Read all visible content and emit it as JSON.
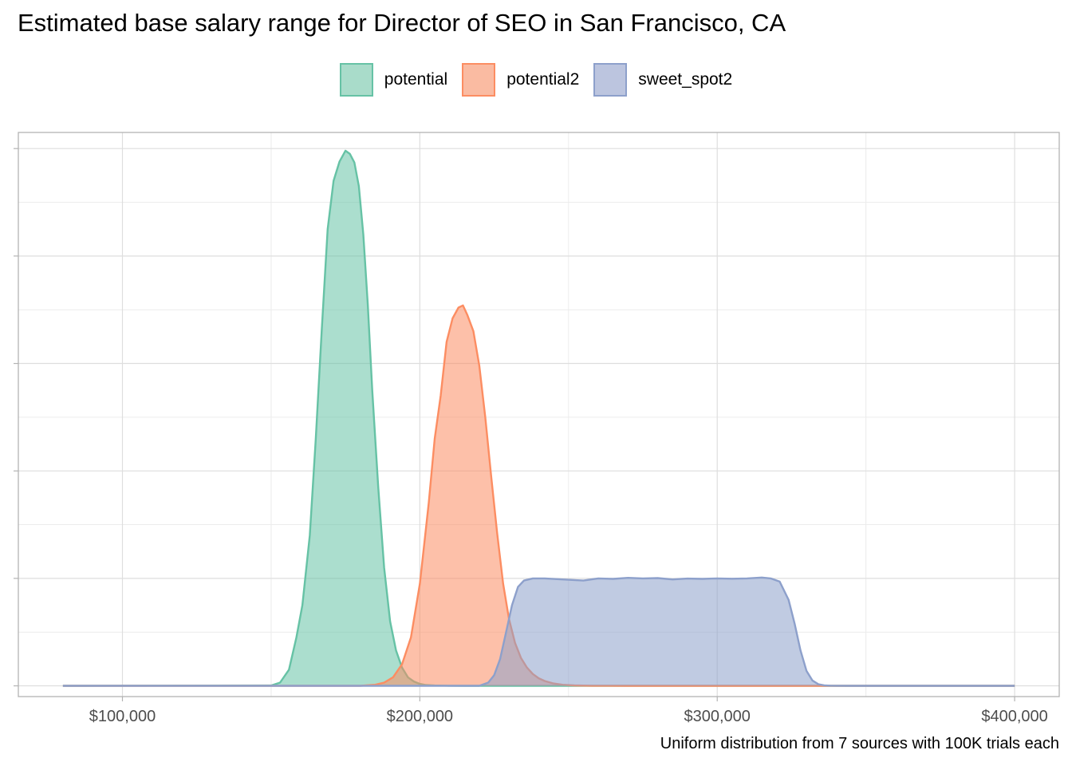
{
  "title": "Estimated base salary range for Director of SEO in San Francisco, CA",
  "caption": "Uniform distribution from 7 sources with 100K trials each",
  "legend": [
    {
      "name": "potential",
      "stroke": "#66c2a5",
      "fill": "#a9dcca"
    },
    {
      "name": "potential2",
      "stroke": "#fc8d62",
      "fill": "#fabba2"
    },
    {
      "name": "sweet_spot2",
      "stroke": "#8da0cb",
      "fill": "#bcc5df"
    }
  ],
  "chart_data": {
    "type": "area",
    "title": "Estimated base salary range for Director of SEO in San Francisco, CA",
    "xlabel": "",
    "ylabel": "",
    "xlim": [
      65000,
      415000
    ],
    "ylim": [
      -0.1,
      5.15
    ],
    "x_ticks": [
      100000,
      200000,
      300000,
      400000
    ],
    "x_tick_labels": [
      "$100,000",
      "$200,000",
      "$300,000",
      "$400,000"
    ],
    "y_ticks": [
      0,
      1,
      2,
      3,
      4,
      5
    ],
    "y_tick_labels": [
      "",
      "",
      "",
      "",
      "",
      ""
    ],
    "grid": true,
    "legend_position": "top",
    "series": [
      {
        "name": "potential",
        "stroke": "#66c2a5",
        "fill": "#66c2a5",
        "x": [
          80000,
          150000,
          153000,
          156000,
          158500,
          160500,
          163000,
          165000,
          167000,
          169000,
          171000,
          173000,
          175000,
          176500,
          178000,
          179500,
          181000,
          182500,
          184000,
          186000,
          188000,
          190000,
          192000,
          194000,
          196000,
          198000,
          200000,
          202000,
          205000,
          210000,
          215000,
          250000,
          300000,
          400000
        ],
        "y": [
          0,
          0.003,
          0.03,
          0.15,
          0.45,
          0.75,
          1.4,
          2.3,
          3.3,
          4.25,
          4.7,
          4.88,
          4.98,
          4.95,
          4.87,
          4.65,
          4.2,
          3.55,
          2.75,
          1.85,
          1.1,
          0.6,
          0.33,
          0.17,
          0.08,
          0.04,
          0.018,
          0.008,
          0.003,
          0.001,
          0,
          0,
          0,
          0
        ]
      },
      {
        "name": "potential2",
        "stroke": "#fc8d62",
        "fill": "#fc8d62",
        "x": [
          80000,
          180000,
          185000,
          188000,
          191000,
          194000,
          197000,
          200000,
          203000,
          205000,
          207000,
          209000,
          211000,
          213000,
          214500,
          216000,
          218000,
          220000,
          222000,
          224000,
          226000,
          228000,
          230000,
          232000,
          234000,
          236000,
          238000,
          240000,
          242000,
          245000,
          248000,
          252000,
          258000,
          270000,
          300000,
          400000
        ],
        "y": [
          0,
          0,
          0.01,
          0.03,
          0.08,
          0.2,
          0.45,
          0.95,
          1.7,
          2.3,
          2.7,
          3.2,
          3.42,
          3.52,
          3.54,
          3.45,
          3.3,
          2.98,
          2.5,
          1.95,
          1.42,
          0.95,
          0.62,
          0.4,
          0.26,
          0.17,
          0.11,
          0.07,
          0.045,
          0.022,
          0.01,
          0.004,
          0.001,
          0,
          0,
          0
        ]
      },
      {
        "name": "sweet_spot2",
        "stroke": "#8da0cb",
        "fill": "#8da0cb",
        "x": [
          80000,
          220000,
          223000,
          225000,
          227000,
          229000,
          231000,
          233000,
          235000,
          238000,
          242000,
          248000,
          255000,
          260000,
          265000,
          270000,
          275000,
          280000,
          285000,
          290000,
          295000,
          300000,
          305000,
          310000,
          315000,
          318000,
          321000,
          324000,
          326000,
          328000,
          330000,
          332000,
          334000,
          336000,
          338000,
          340000,
          345000,
          400000
        ],
        "y": [
          0,
          0,
          0.03,
          0.1,
          0.25,
          0.5,
          0.75,
          0.92,
          0.98,
          1.0,
          1.0,
          0.99,
          0.98,
          1.0,
          0.995,
          1.005,
          1.0,
          1.003,
          0.99,
          0.998,
          0.995,
          1.0,
          0.997,
          1.0,
          1.008,
          1.0,
          0.97,
          0.8,
          0.58,
          0.33,
          0.14,
          0.05,
          0.015,
          0.005,
          0.002,
          0.001,
          0,
          0
        ]
      }
    ]
  }
}
